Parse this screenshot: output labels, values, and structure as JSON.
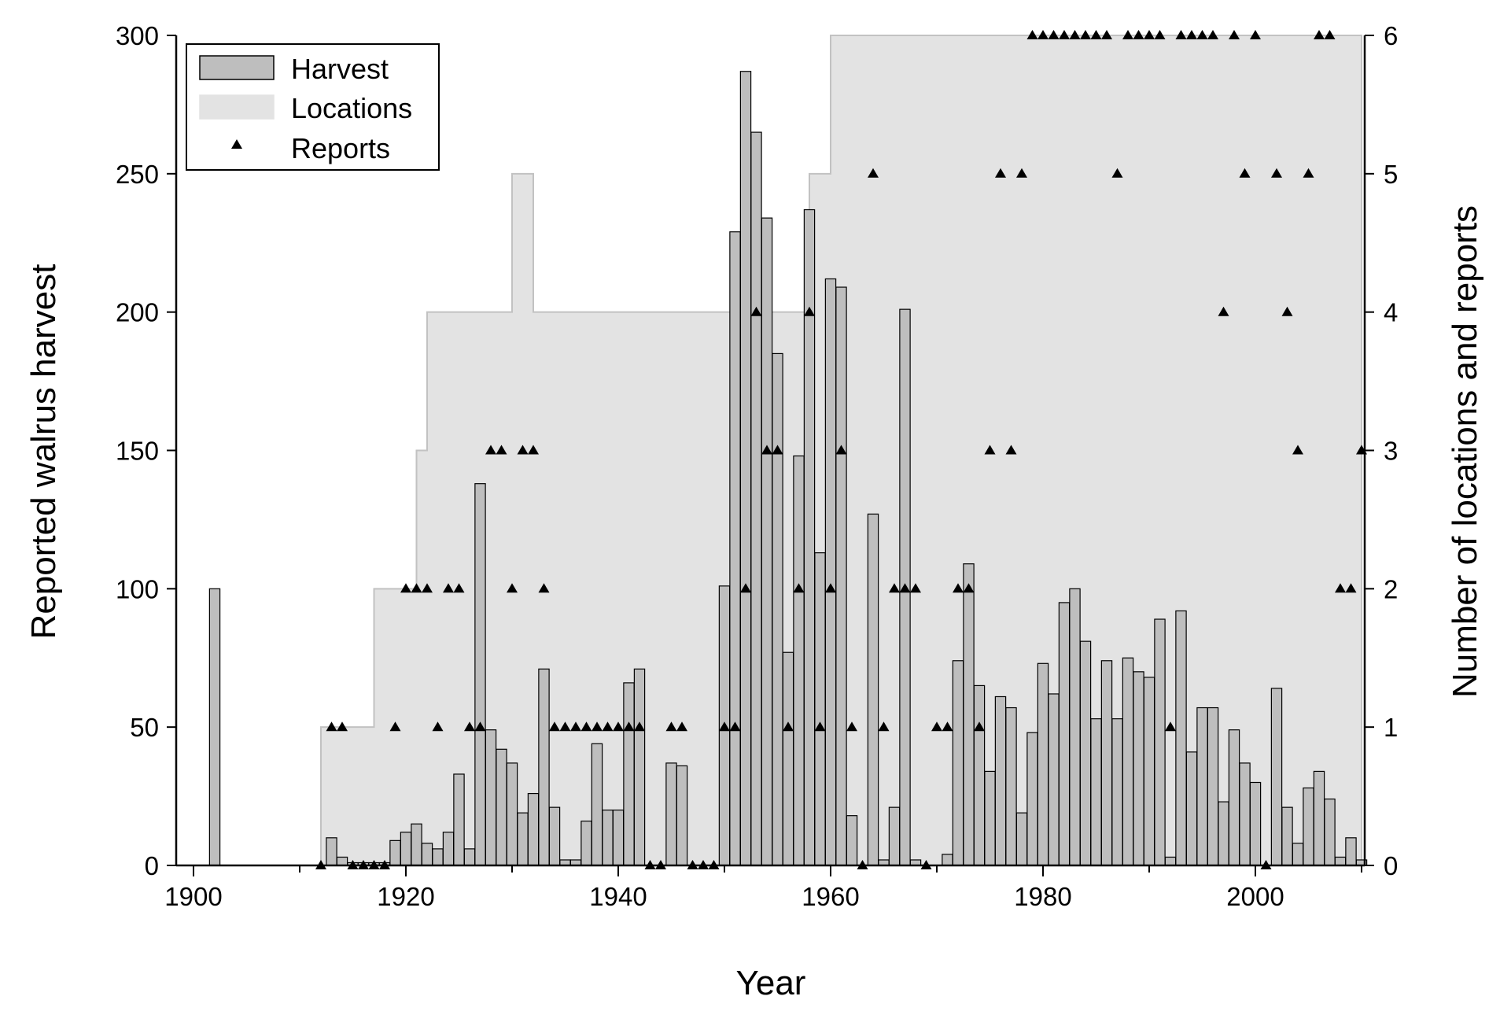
{
  "chart_data": {
    "type": "bar",
    "xlabel": "Year",
    "ylabel": "Reported walrus harvest",
    "y2label": "Number of locations and reports",
    "xlim": [
      1898,
      2011
    ],
    "ylim": [
      0,
      300
    ],
    "y2lim": [
      0,
      6
    ],
    "x_ticks": [
      1900,
      1920,
      1940,
      1960,
      1980,
      2000
    ],
    "y_ticks": [
      0,
      50,
      100,
      150,
      200,
      250,
      300
    ],
    "y2_ticks": [
      0,
      1,
      2,
      3,
      4,
      5,
      6
    ],
    "grid": false,
    "legend": {
      "position": "top-left",
      "entries": [
        "Harvest",
        "Locations",
        "Reports"
      ]
    },
    "colors": {
      "harvest_fill": "#bebebe",
      "harvest_edge": "#000000",
      "locations_fill": "#e3e3e3",
      "locations_edge": "#c2c2c2",
      "reports": "#000000"
    },
    "harvest": {
      "name": "Harvest",
      "axis": "left",
      "years": [
        1902,
        1913,
        1914,
        1915,
        1916,
        1917,
        1918,
        1919,
        1920,
        1921,
        1922,
        1923,
        1924,
        1925,
        1926,
        1927,
        1928,
        1929,
        1930,
        1931,
        1932,
        1933,
        1934,
        1935,
        1936,
        1937,
        1938,
        1939,
        1940,
        1941,
        1942,
        1945,
        1946,
        1950,
        1951,
        1952,
        1953,
        1954,
        1955,
        1956,
        1957,
        1958,
        1959,
        1960,
        1961,
        1962,
        1964,
        1965,
        1966,
        1967,
        1968,
        1971,
        1972,
        1973,
        1974,
        1975,
        1976,
        1977,
        1978,
        1979,
        1980,
        1981,
        1982,
        1983,
        1984,
        1985,
        1986,
        1987,
        1988,
        1989,
        1990,
        1991,
        1992,
        1993,
        1994,
        1995,
        1996,
        1997,
        1998,
        1999,
        2000,
        2002,
        2003,
        2004,
        2005,
        2006,
        2007,
        2008,
        2009,
        2010
      ],
      "values": [
        100,
        10,
        3,
        1,
        1,
        1,
        1,
        9,
        12,
        15,
        8,
        6,
        12,
        33,
        6,
        138,
        49,
        42,
        37,
        19,
        26,
        71,
        21,
        2,
        2,
        16,
        44,
        20,
        20,
        66,
        71,
        37,
        36,
        101,
        229,
        287,
        265,
        234,
        185,
        77,
        148,
        237,
        113,
        212,
        209,
        18,
        127,
        2,
        21,
        201,
        2,
        4,
        74,
        109,
        65,
        34,
        61,
        57,
        19,
        48,
        73,
        62,
        95,
        100,
        81,
        53,
        74,
        53,
        75,
        70,
        68,
        89,
        3,
        92,
        41,
        57,
        57,
        23,
        49,
        37,
        30,
        64,
        21,
        8,
        28,
        34,
        24,
        3,
        10,
        2
      ]
    },
    "locations": {
      "name": "Locations",
      "axis": "right",
      "steps": [
        {
          "from": 1912,
          "to": 1917,
          "value": 1
        },
        {
          "from": 1917,
          "to": 1921,
          "value": 2
        },
        {
          "from": 1921,
          "to": 1922,
          "value": 3
        },
        {
          "from": 1922,
          "to": 1930,
          "value": 4
        },
        {
          "from": 1930,
          "to": 1932,
          "value": 5
        },
        {
          "from": 1932,
          "to": 1958,
          "value": 4
        },
        {
          "from": 1958,
          "to": 1960,
          "value": 5
        },
        {
          "from": 1960,
          "to": 2010,
          "value": 6
        }
      ]
    },
    "reports": {
      "name": "Reports",
      "axis": "right",
      "years": [
        1912,
        1913,
        1914,
        1915,
        1916,
        1917,
        1918,
        1919,
        1920,
        1921,
        1922,
        1923,
        1924,
        1925,
        1926,
        1927,
        1928,
        1929,
        1930,
        1931,
        1932,
        1933,
        1934,
        1935,
        1936,
        1937,
        1938,
        1939,
        1940,
        1941,
        1942,
        1943,
        1944,
        1945,
        1946,
        1947,
        1948,
        1949,
        1950,
        1951,
        1952,
        1953,
        1954,
        1955,
        1956,
        1957,
        1958,
        1959,
        1960,
        1961,
        1962,
        1963,
        1964,
        1965,
        1966,
        1967,
        1968,
        1969,
        1970,
        1971,
        1972,
        1973,
        1974,
        1975,
        1976,
        1977,
        1978,
        1979,
        1980,
        1981,
        1982,
        1983,
        1984,
        1985,
        1986,
        1987,
        1988,
        1989,
        1990,
        1991,
        1992,
        1993,
        1994,
        1995,
        1996,
        1997,
        1998,
        1999,
        2000,
        2001,
        2002,
        2003,
        2004,
        2005,
        2006,
        2007,
        2008,
        2009,
        2010
      ],
      "values": [
        0,
        1,
        1,
        0,
        0,
        0,
        0,
        1,
        2,
        2,
        2,
        1,
        2,
        2,
        1,
        1,
        3,
        3,
        2,
        3,
        3,
        2,
        1,
        1,
        1,
        1,
        1,
        1,
        1,
        1,
        1,
        0,
        0,
        1,
        1,
        0,
        0,
        0,
        1,
        1,
        2,
        4,
        3,
        3,
        1,
        2,
        4,
        1,
        2,
        3,
        1,
        0,
        5,
        1,
        2,
        2,
        2,
        0,
        1,
        1,
        2,
        2,
        1,
        3,
        5,
        3,
        5,
        6,
        6,
        6,
        6,
        6,
        6,
        6,
        6,
        5,
        6,
        6,
        6,
        6,
        1,
        6,
        6,
        6,
        6,
        4,
        6,
        5,
        6,
        0,
        5,
        4,
        3,
        5,
        6,
        6,
        2,
        2,
        3
      ]
    }
  }
}
